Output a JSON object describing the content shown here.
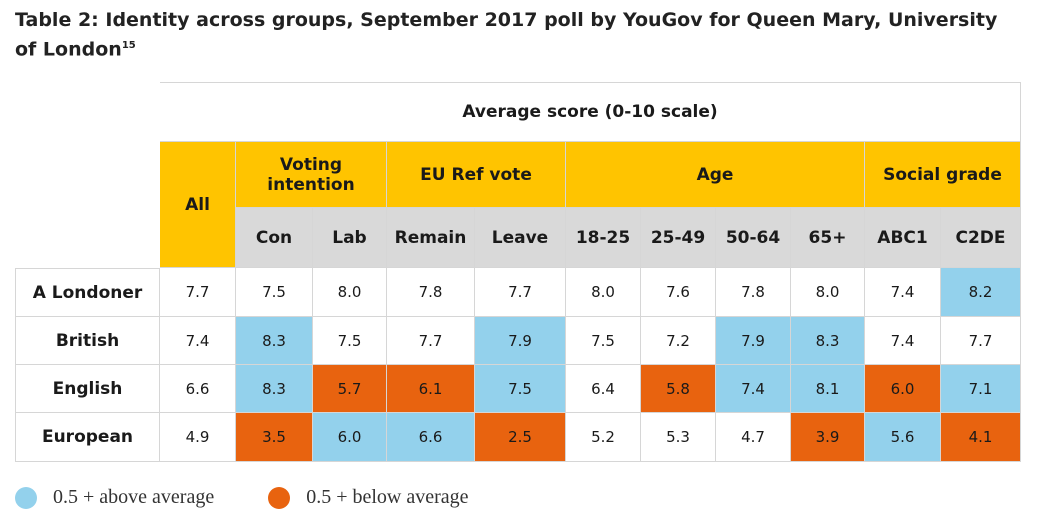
{
  "title": "Table 2: Identity across groups, September 2017 poll by YouGov for Queen Mary, University of London",
  "title_footnote": "15",
  "header": {
    "average": "Average score (0-10 scale)",
    "all": "All",
    "groups": [
      {
        "label": "Voting intention",
        "span": 2
      },
      {
        "label": "EU Ref vote",
        "span": 2
      },
      {
        "label": "Age",
        "span": 4
      },
      {
        "label": "Social grade",
        "span": 2
      }
    ],
    "columns": [
      "Con",
      "Lab",
      "Remain",
      "Leave",
      "18-25",
      "25-49",
      "50-64",
      "65+",
      "ABC1",
      "C2DE"
    ]
  },
  "rows": [
    {
      "label": "A Londoner",
      "all": "7.7",
      "values": [
        "7.5",
        "8.0",
        "7.8",
        "7.7",
        "8.0",
        "7.6",
        "7.8",
        "8.0",
        "7.4",
        "8.2"
      ],
      "highlight": [
        "",
        "",
        "",
        "",
        "",
        "",
        "",
        "",
        "",
        "blue"
      ]
    },
    {
      "label": "British",
      "all": "7.4",
      "values": [
        "8.3",
        "7.5",
        "7.7",
        "7.9",
        "7.5",
        "7.2",
        "7.9",
        "8.3",
        "7.4",
        "7.7"
      ],
      "highlight": [
        "blue",
        "",
        "",
        "blue",
        "",
        "",
        "blue",
        "blue",
        "",
        ""
      ]
    },
    {
      "label": "English",
      "all": "6.6",
      "values": [
        "8.3",
        "5.7",
        "6.1",
        "7.5",
        "6.4",
        "5.8",
        "7.4",
        "8.1",
        "6.0",
        "7.1"
      ],
      "highlight": [
        "blue",
        "orange",
        "orange",
        "blue",
        "",
        "orange",
        "blue",
        "blue",
        "orange",
        "blue"
      ]
    },
    {
      "label": "European",
      "all": "4.9",
      "values": [
        "3.5",
        "6.0",
        "6.6",
        "2.5",
        "5.2",
        "5.3",
        "4.7",
        "3.9",
        "5.6",
        "4.1"
      ],
      "highlight": [
        "orange",
        "blue",
        "blue",
        "orange",
        "",
        "",
        "",
        "orange",
        "blue",
        "orange"
      ]
    }
  ],
  "legend": [
    {
      "label": "0.5 + above average",
      "color": "#93D1EC"
    },
    {
      "label": "0.5 + below average",
      "color": "#E8630F"
    }
  ],
  "colors": {
    "header_yellow": "#FFC400",
    "subheader_gray": "#D9D9D9",
    "above": "#93D1EC",
    "below": "#E8630F"
  }
}
